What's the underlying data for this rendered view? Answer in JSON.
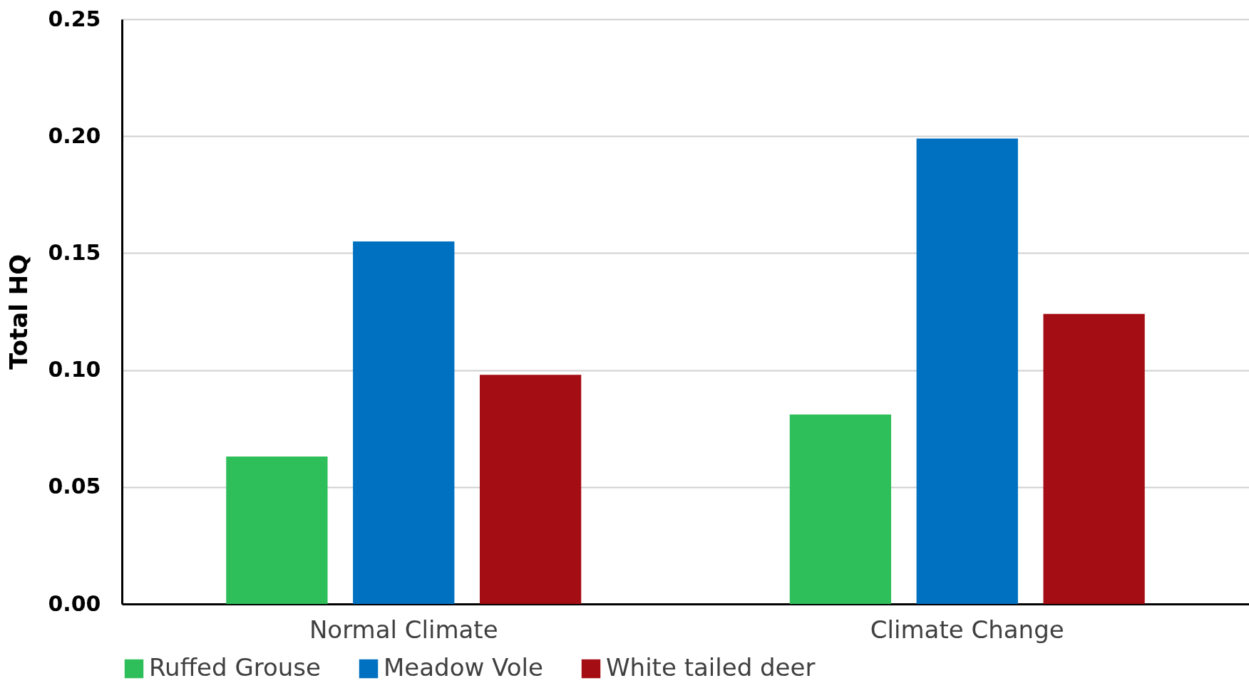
{
  "chart_data": {
    "type": "bar",
    "ylabel": "Total HQ",
    "categories": [
      "Normal Climate",
      "Climate Change"
    ],
    "series": [
      {
        "name": "Ruffed Grouse",
        "color": "#2fbf5a",
        "values": [
          0.063,
          0.081
        ]
      },
      {
        "name": "Meadow Vole",
        "color": "#0070c0",
        "values": [
          0.155,
          0.199
        ]
      },
      {
        "name": "White tailed deer",
        "color": "#a50d14",
        "values": [
          0.098,
          0.124
        ]
      }
    ],
    "ylim": [
      0,
      0.25
    ],
    "yticks": [
      {
        "value": 0,
        "label": "0.00"
      },
      {
        "value": 0.05,
        "label": "0.05"
      },
      {
        "value": 0.1,
        "label": "0.10"
      },
      {
        "value": 0.15,
        "label": "0.15"
      },
      {
        "value": 0.2,
        "label": "0.20"
      },
      {
        "value": 0.25,
        "label": "0.25"
      }
    ],
    "grid": "y",
    "legend": "bottom"
  }
}
